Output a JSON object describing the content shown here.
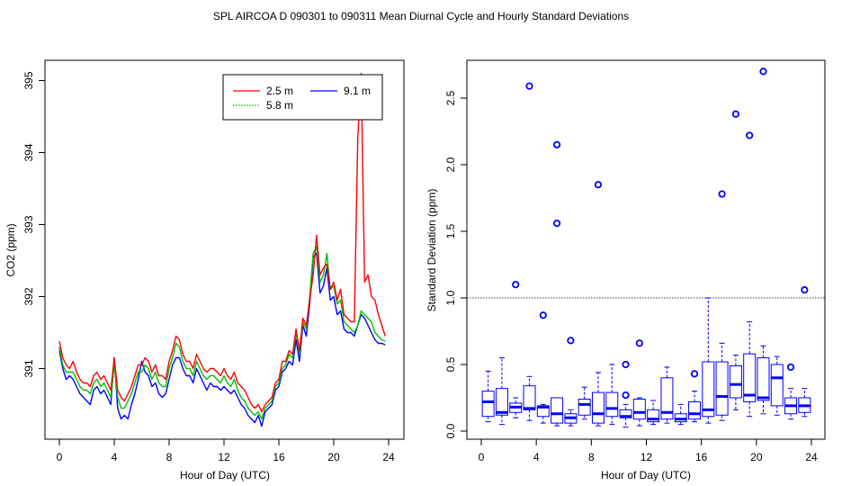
{
  "figure_title": "SPL   AIRCOA D   090301 to 090311   Mean Diurnal Cycle and Hourly Standard Deviations",
  "colors": {
    "s2_5": "#ff0000",
    "s5_8": "#00c000",
    "s9_1": "#0000ff",
    "box": "#0000ff",
    "axis": "#000000"
  },
  "chart_data": [
    {
      "type": "line",
      "xlabel": "Hour of Day (UTC)",
      "ylabel": "CO2 (ppm)",
      "xlim": [
        0,
        24
      ],
      "ylim": [
        390.0,
        395.1
      ],
      "xticks": [
        0,
        4,
        8,
        12,
        16,
        20,
        24
      ],
      "yticks": [
        391,
        392,
        393,
        394,
        395
      ],
      "grid": false,
      "legend_position": "top-right",
      "legend": [
        {
          "name": "2.5 m",
          "style": "solid"
        },
        {
          "name": "5.8 m",
          "style": "dotted"
        },
        {
          "name": "9.1 m",
          "style": "solid"
        }
      ],
      "x": [
        0.0,
        0.25,
        0.5,
        0.75,
        1.0,
        1.25,
        1.5,
        1.75,
        2.0,
        2.25,
        2.5,
        2.75,
        3.0,
        3.25,
        3.5,
        3.75,
        4.0,
        4.25,
        4.5,
        4.75,
        5.0,
        5.25,
        5.5,
        5.75,
        6.0,
        6.25,
        6.5,
        6.75,
        7.0,
        7.25,
        7.5,
        7.75,
        8.0,
        8.25,
        8.5,
        8.75,
        9.0,
        9.25,
        9.5,
        9.75,
        10.0,
        10.25,
        10.5,
        10.75,
        11.0,
        11.25,
        11.5,
        11.75,
        12.0,
        12.25,
        12.5,
        12.75,
        13.0,
        13.25,
        13.5,
        13.75,
        14.0,
        14.25,
        14.5,
        14.75,
        15.0,
        15.25,
        15.5,
        15.75,
        16.0,
        16.25,
        16.5,
        16.75,
        17.0,
        17.25,
        17.5,
        17.75,
        18.0,
        18.25,
        18.5,
        18.75,
        19.0,
        19.25,
        19.5,
        19.75,
        20.0,
        20.25,
        20.5,
        20.75,
        21.0,
        21.25,
        21.5,
        21.75,
        22.0,
        22.25,
        22.5,
        22.75,
        23.0,
        23.25,
        23.5,
        23.75
      ],
      "series": [
        {
          "name": "2.5 m",
          "values": [
            391.38,
            391.15,
            391.05,
            391.0,
            391.1,
            390.95,
            390.85,
            390.8,
            390.8,
            390.75,
            390.9,
            390.95,
            390.85,
            390.9,
            390.8,
            390.7,
            391.15,
            390.7,
            390.6,
            390.55,
            390.65,
            390.75,
            390.9,
            391.05,
            391.05,
            391.15,
            391.1,
            390.95,
            391.05,
            390.9,
            390.9,
            390.85,
            391.1,
            391.25,
            391.45,
            391.4,
            391.2,
            391.1,
            391.1,
            391.0,
            391.2,
            391.1,
            391.0,
            390.95,
            391.0,
            391.0,
            390.95,
            390.9,
            391.0,
            390.9,
            390.85,
            390.95,
            390.8,
            390.75,
            390.7,
            390.6,
            390.5,
            390.45,
            390.5,
            390.4,
            390.5,
            390.55,
            390.6,
            390.8,
            390.85,
            391.1,
            391.1,
            391.25,
            391.2,
            391.55,
            391.25,
            391.7,
            391.6,
            391.95,
            392.3,
            392.85,
            392.3,
            392.4,
            392.45,
            392.1,
            392.2,
            391.95,
            392.1,
            391.75,
            391.7,
            391.65,
            391.65,
            394.2,
            395.1,
            392.2,
            392.3,
            392.0,
            391.95,
            391.75,
            391.6,
            391.45
          ]
        },
        {
          "name": "5.8 m",
          "values": [
            391.3,
            391.05,
            390.95,
            390.95,
            390.95,
            390.85,
            390.75,
            390.7,
            390.7,
            390.65,
            390.8,
            390.85,
            390.75,
            390.8,
            390.7,
            390.6,
            391.05,
            390.6,
            390.45,
            390.45,
            390.55,
            390.65,
            390.8,
            390.95,
            390.95,
            391.05,
            391.0,
            390.85,
            390.95,
            390.8,
            390.75,
            390.75,
            391.0,
            391.15,
            391.35,
            391.3,
            391.1,
            391.0,
            391.0,
            390.9,
            391.1,
            391.0,
            390.9,
            390.85,
            390.9,
            390.9,
            390.85,
            390.8,
            390.9,
            390.8,
            390.75,
            390.85,
            390.7,
            390.6,
            390.55,
            390.45,
            390.4,
            390.35,
            390.4,
            390.3,
            390.45,
            390.5,
            390.55,
            390.75,
            390.8,
            391.0,
            391.05,
            391.2,
            391.15,
            391.5,
            391.2,
            391.65,
            391.55,
            392.0,
            392.6,
            392.7,
            392.2,
            392.3,
            392.6,
            392.1,
            392.15,
            391.9,
            391.95,
            391.65,
            391.6,
            391.55,
            391.5,
            391.6,
            391.8,
            391.75,
            391.7,
            391.65,
            391.5,
            391.45,
            391.4,
            391.38
          ]
        },
        {
          "name": "9.1 m",
          "values": [
            391.25,
            391.0,
            390.85,
            390.9,
            390.85,
            390.75,
            390.65,
            390.6,
            390.55,
            390.5,
            390.7,
            390.75,
            390.65,
            390.7,
            390.6,
            390.5,
            391.15,
            390.45,
            390.3,
            390.35,
            390.3,
            390.5,
            390.65,
            390.85,
            391.1,
            390.95,
            390.9,
            390.75,
            390.8,
            390.65,
            390.6,
            390.65,
            390.85,
            391.05,
            391.15,
            391.15,
            391.0,
            390.9,
            390.9,
            390.8,
            391.0,
            390.9,
            390.8,
            390.7,
            390.8,
            390.75,
            390.75,
            390.7,
            390.75,
            390.7,
            390.65,
            390.7,
            390.6,
            390.5,
            390.45,
            390.35,
            390.3,
            390.25,
            390.35,
            390.2,
            390.4,
            390.45,
            390.5,
            390.7,
            390.75,
            390.95,
            391.0,
            391.1,
            391.05,
            391.4,
            391.1,
            391.6,
            391.45,
            391.9,
            392.55,
            392.6,
            392.05,
            392.15,
            392.4,
            391.95,
            392.0,
            391.75,
            391.8,
            391.55,
            391.5,
            391.5,
            391.45,
            391.6,
            391.75,
            391.7,
            391.6,
            391.5,
            391.4,
            391.35,
            391.35,
            391.33
          ]
        }
      ]
    },
    {
      "type": "box",
      "xlabel": "Hour of Day (UTC)",
      "ylabel": "Standard Deviation (ppm)",
      "xlim": [
        0,
        24
      ],
      "ylim": [
        0.0,
        2.7
      ],
      "xticks": [
        0,
        4,
        8,
        12,
        16,
        20,
        24
      ],
      "yticks": [
        "0.0",
        "0.5",
        "1.0",
        "1.5",
        "2.0",
        "2.5"
      ],
      "reference_line": 1.0,
      "grid": false,
      "boxes": [
        {
          "hour": 0.5,
          "min": 0.07,
          "q1": 0.11,
          "median": 0.22,
          "q3": 0.3,
          "max": 0.45
        },
        {
          "hour": 1.5,
          "min": 0.05,
          "q1": 0.12,
          "median": 0.14,
          "q3": 0.32,
          "max": 0.55
        },
        {
          "hour": 2.5,
          "min": 0.1,
          "q1": 0.14,
          "median": 0.18,
          "q3": 0.21,
          "max": 0.25
        },
        {
          "hour": 3.5,
          "min": 0.08,
          "q1": 0.16,
          "median": 0.17,
          "q3": 0.34,
          "max": 0.41
        },
        {
          "hour": 4.5,
          "min": 0.06,
          "q1": 0.11,
          "median": 0.18,
          "q3": 0.19,
          "max": 0.2
        },
        {
          "hour": 5.5,
          "min": 0.04,
          "q1": 0.06,
          "median": 0.13,
          "q3": 0.25,
          "max": 0.25
        },
        {
          "hour": 6.5,
          "min": 0.04,
          "q1": 0.06,
          "median": 0.1,
          "q3": 0.13,
          "max": 0.16
        },
        {
          "hour": 7.5,
          "min": 0.09,
          "q1": 0.12,
          "median": 0.2,
          "q3": 0.24,
          "max": 0.33
        },
        {
          "hour": 8.5,
          "min": 0.04,
          "q1": 0.06,
          "median": 0.13,
          "q3": 0.29,
          "max": 0.44
        },
        {
          "hour": 9.5,
          "min": 0.05,
          "q1": 0.11,
          "median": 0.17,
          "q3": 0.29,
          "max": 0.5
        },
        {
          "hour": 10.5,
          "min": 0.03,
          "q1": 0.1,
          "median": 0.11,
          "q3": 0.16,
          "max": 0.2
        },
        {
          "hour": 11.5,
          "min": 0.04,
          "q1": 0.09,
          "median": 0.14,
          "q3": 0.24,
          "max": 0.25
        },
        {
          "hour": 12.5,
          "min": 0.05,
          "q1": 0.07,
          "median": 0.09,
          "q3": 0.16,
          "max": 0.23
        },
        {
          "hour": 13.5,
          "min": 0.06,
          "q1": 0.09,
          "median": 0.14,
          "q3": 0.4,
          "max": 0.48
        },
        {
          "hour": 14.5,
          "min": 0.05,
          "q1": 0.07,
          "median": 0.09,
          "q3": 0.13,
          "max": 0.2
        },
        {
          "hour": 15.5,
          "min": 0.07,
          "q1": 0.09,
          "median": 0.13,
          "q3": 0.22,
          "max": 0.3
        },
        {
          "hour": 16.5,
          "min": 0.06,
          "q1": 0.11,
          "median": 0.16,
          "q3": 0.52,
          "max": 1.0
        },
        {
          "hour": 17.5,
          "min": 0.08,
          "q1": 0.12,
          "median": 0.26,
          "q3": 0.52,
          "max": 0.66
        },
        {
          "hour": 18.5,
          "min": 0.16,
          "q1": 0.25,
          "median": 0.35,
          "q3": 0.49,
          "max": 0.57
        },
        {
          "hour": 19.5,
          "min": 0.11,
          "q1": 0.22,
          "median": 0.27,
          "q3": 0.58,
          "max": 0.82
        },
        {
          "hour": 20.5,
          "min": 0.13,
          "q1": 0.23,
          "median": 0.25,
          "q3": 0.55,
          "max": 0.64
        },
        {
          "hour": 21.5,
          "min": 0.12,
          "q1": 0.19,
          "median": 0.4,
          "q3": 0.5,
          "max": 0.56
        },
        {
          "hour": 22.5,
          "min": 0.09,
          "q1": 0.13,
          "median": 0.19,
          "q3": 0.25,
          "max": 0.32
        },
        {
          "hour": 23.5,
          "min": 0.11,
          "q1": 0.14,
          "median": 0.19,
          "q3": 0.25,
          "max": 0.32
        }
      ],
      "outliers": [
        {
          "hour": 2.5,
          "value": 1.1
        },
        {
          "hour": 3.5,
          "value": 2.59
        },
        {
          "hour": 4.5,
          "value": 0.87
        },
        {
          "hour": 5.5,
          "value": 2.15
        },
        {
          "hour": 5.5,
          "value": 1.56
        },
        {
          "hour": 6.5,
          "value": 0.68
        },
        {
          "hour": 8.5,
          "value": 1.85
        },
        {
          "hour": 10.5,
          "value": 0.5
        },
        {
          "hour": 10.5,
          "value": 0.27
        },
        {
          "hour": 11.5,
          "value": 0.66
        },
        {
          "hour": 15.5,
          "value": 0.43
        },
        {
          "hour": 17.5,
          "value": 1.78
        },
        {
          "hour": 18.5,
          "value": 2.38
        },
        {
          "hour": 19.5,
          "value": 2.22
        },
        {
          "hour": 20.5,
          "value": 2.7
        },
        {
          "hour": 22.5,
          "value": 0.48
        },
        {
          "hour": 23.5,
          "value": 1.06
        }
      ]
    }
  ]
}
